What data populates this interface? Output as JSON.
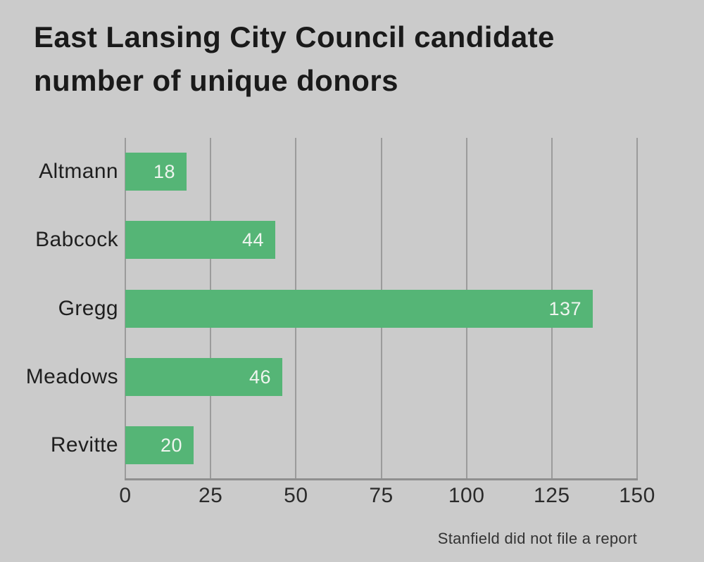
{
  "title": {
    "line1": "East Lansing City Council candidate",
    "line2": "number of unique donors"
  },
  "footnote": "Stanfield did not file a report",
  "chart_data": {
    "type": "bar",
    "orientation": "horizontal",
    "title": "East Lansing City Council candidate number of unique donors",
    "categories": [
      "Altmann",
      "Babcock",
      "Gregg",
      "Meadows",
      "Revitte"
    ],
    "values": [
      18,
      44,
      137,
      46,
      20
    ],
    "xlabel": "",
    "ylabel": "",
    "xlim": [
      0,
      150
    ],
    "xticks": [
      0,
      25,
      50,
      75,
      100,
      125,
      150
    ],
    "grid": "vertical-gridlines-on",
    "legend": "none",
    "annotation": "Stanfield did not file a report",
    "value_labels": "inside-right-end-of-bar"
  },
  "colors": {
    "background": "#cbcbcb",
    "bar_fill": "#55b576",
    "bar_value_text": "#eff5ef",
    "gridline": "#9b9b9b",
    "axis_line": "#8f8f8f",
    "title_text": "#1a1a1a",
    "label_text": "#1f1f1f",
    "tick_text": "#2b2b2b",
    "footnote_text": "#333333"
  }
}
